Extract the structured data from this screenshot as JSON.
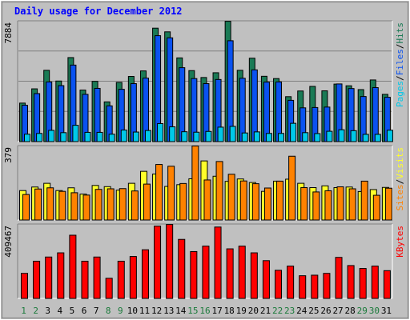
{
  "chart_data": {
    "type": "bar",
    "title": "Daily usage for December 2012",
    "colors": {
      "background": "#c0c0c0",
      "pages": "#00c8e8",
      "files": "#0a52f0",
      "hits": "#1a7a55",
      "visits": "#ffff2a",
      "sites": "#ff8200",
      "kbytes": "#ff0000",
      "title": "#0000ff",
      "weekday_label": "#000000",
      "weekend_label": "#1a7a3a",
      "max_label": "#000000"
    },
    "categories": [
      "1",
      "2",
      "3",
      "4",
      "5",
      "6",
      "7",
      "8",
      "9",
      "10",
      "11",
      "12",
      "13",
      "14",
      "15",
      "16",
      "17",
      "18",
      "19",
      "20",
      "21",
      "22",
      "23",
      "24",
      "25",
      "26",
      "27",
      "28",
      "29",
      "30",
      "31"
    ],
    "weekend_days": [
      "1",
      "2",
      "8",
      "9",
      "15",
      "16",
      "22",
      "23",
      "29",
      "30"
    ],
    "panels": [
      {
        "id": "hits-files-pages",
        "max_label": "7884",
        "ylim": [
          0,
          7884
        ],
        "legend": [
          {
            "text": "Pages",
            "color": "#00c8e8"
          },
          {
            "text": "/",
            "color": "#000000"
          },
          {
            "text": "Files",
            "color": "#0a52f0"
          },
          {
            "text": "/",
            "color": "#000000"
          },
          {
            "text": "Hits",
            "color": "#1a7a55"
          }
        ],
        "series": [
          {
            "name": "Hits",
            "values": [
              2540,
              3470,
              4680,
              3980,
              5510,
              3390,
              3960,
              2620,
              3890,
              4280,
              4640,
              7430,
              7190,
              5490,
              4660,
              4210,
              4520,
              7880,
              4680,
              5470,
              4290,
              4140,
              2960,
              3330,
              3630,
              3340,
              3780,
              3670,
              3420,
              4050,
              3110
            ]
          },
          {
            "name": "Files",
            "values": [
              2400,
              3160,
              3920,
              3680,
              5020,
              3110,
              3500,
              2360,
              3440,
              3810,
              4170,
              6940,
              6800,
              4850,
              4140,
              3810,
              4080,
              6610,
              4160,
              4710,
              3910,
              3920,
              2720,
              2230,
              2250,
              2280,
              3790,
              3490,
              2970,
              3550,
              2920
            ]
          },
          {
            "name": "Pages",
            "values": [
              510,
              560,
              760,
              610,
              1090,
              630,
              630,
              510,
              780,
              650,
              750,
              1200,
              990,
              670,
              640,
              690,
              970,
              1020,
              590,
              660,
              560,
              560,
              1220,
              610,
              550,
              700,
              800,
              740,
              500,
              500,
              770
            ]
          }
        ]
      },
      {
        "id": "visits-sites",
        "max_label": "379",
        "ylim": [
          0,
          379
        ],
        "legend": [
          {
            "text": "Sites",
            "color": "#ff8200"
          },
          {
            "text": "/",
            "color": "#000000"
          },
          {
            "text": "Visits",
            "color": "#ffff2a"
          }
        ],
        "series": [
          {
            "name": "Visits",
            "values": [
              152,
              170,
              189,
              152,
              166,
              134,
              178,
              172,
              154,
              189,
              250,
              236,
              173,
              182,
              212,
              303,
              225,
              199,
              211,
              193,
              148,
              200,
              210,
              189,
              167,
              176,
              167,
              170,
              147,
              157,
              168
            ]
          },
          {
            "name": "Sites",
            "values": [
              132,
              160,
              166,
              148,
              141,
              129,
              158,
              161,
              162,
              150,
              185,
              285,
              276,
              188,
              379,
              206,
              300,
              235,
              201,
              187,
              165,
              200,
              327,
              167,
              145,
              151,
              171,
              161,
              200,
              128,
              164
            ]
          }
        ]
      },
      {
        "id": "kbytes",
        "max_label": "409467",
        "ylim": [
          0,
          409467
        ],
        "legend": [
          {
            "text": "KBytes",
            "color": "#ff0000"
          }
        ],
        "series": [
          {
            "name": "KBytes",
            "values": [
              140000,
              207000,
              230000,
              253000,
              350000,
              207000,
              230000,
              113000,
              207000,
              233000,
              270000,
              400000,
              409000,
              327000,
              260000,
              290000,
              395000,
              275000,
              290000,
              253000,
              210000,
              157000,
              180000,
              127000,
              130000,
              140000,
              228000,
              183000,
              167000,
              180000,
              155000
            ]
          }
        ]
      }
    ]
  }
}
